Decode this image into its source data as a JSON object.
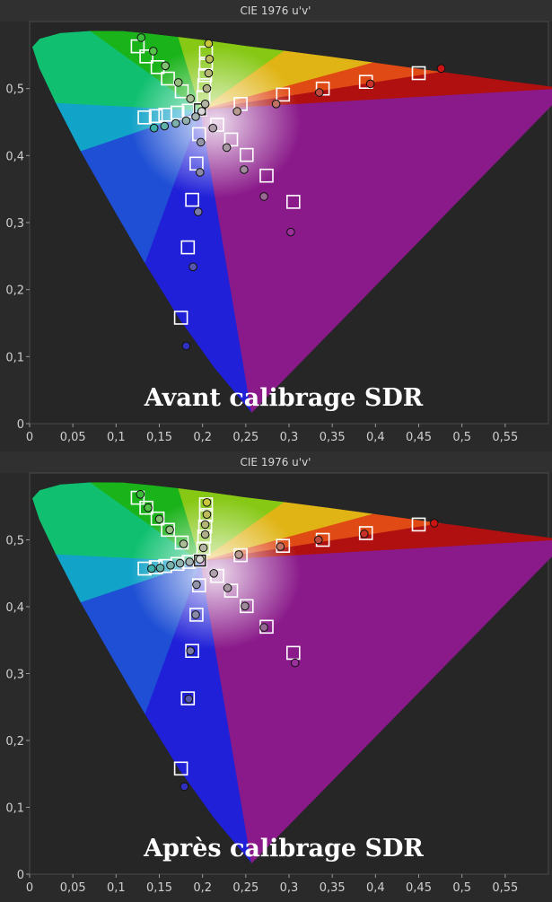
{
  "chart_data": [
    {
      "type": "scatter",
      "title": "CIE 1976 u'v'",
      "annotation": "Avant calibrage SDR",
      "xlim": [
        0,
        0.6
      ],
      "ylim": [
        0,
        0.6
      ],
      "x_ticks": [
        "0",
        "0,05",
        "0,1",
        "0,15",
        "0,2",
        "0,25",
        "0,3",
        "0,35",
        "0,4",
        "0,45",
        "0,5",
        "0,55"
      ],
      "y_ticks": [
        "0",
        "0,1",
        "0,2",
        "0,3",
        "0,4",
        "0,5"
      ],
      "grid": false,
      "targets": [
        {
          "u": 0.125,
          "v": 0.563
        },
        {
          "u": 0.135,
          "v": 0.548
        },
        {
          "u": 0.148,
          "v": 0.532
        },
        {
          "u": 0.16,
          "v": 0.515
        },
        {
          "u": 0.176,
          "v": 0.496
        },
        {
          "u": 0.204,
          "v": 0.553
        },
        {
          "u": 0.204,
          "v": 0.537
        },
        {
          "u": 0.203,
          "v": 0.52
        },
        {
          "u": 0.202,
          "v": 0.505
        },
        {
          "u": 0.201,
          "v": 0.487
        },
        {
          "u": 0.133,
          "v": 0.457
        },
        {
          "u": 0.146,
          "v": 0.459
        },
        {
          "u": 0.157,
          "v": 0.461
        },
        {
          "u": 0.171,
          "v": 0.464
        },
        {
          "u": 0.184,
          "v": 0.467
        },
        {
          "u": 0.197,
          "v": 0.469
        },
        {
          "u": 0.217,
          "v": 0.446
        },
        {
          "u": 0.233,
          "v": 0.424
        },
        {
          "u": 0.251,
          "v": 0.401
        },
        {
          "u": 0.274,
          "v": 0.37
        },
        {
          "u": 0.305,
          "v": 0.331
        },
        {
          "u": 0.196,
          "v": 0.432
        },
        {
          "u": 0.193,
          "v": 0.388
        },
        {
          "u": 0.188,
          "v": 0.334
        },
        {
          "u": 0.183,
          "v": 0.263
        },
        {
          "u": 0.175,
          "v": 0.158
        },
        {
          "u": 0.244,
          "v": 0.477
        },
        {
          "u": 0.293,
          "v": 0.491
        },
        {
          "u": 0.339,
          "v": 0.5
        },
        {
          "u": 0.389,
          "v": 0.51
        },
        {
          "u": 0.45,
          "v": 0.523
        }
      ],
      "measurements": [
        {
          "u": 0.129,
          "v": 0.576,
          "color": "#3bbd3b"
        },
        {
          "u": 0.143,
          "v": 0.556,
          "color": "#55c24a"
        },
        {
          "u": 0.157,
          "v": 0.534,
          "color": "#80c070"
        },
        {
          "u": 0.172,
          "v": 0.509,
          "color": "#95be80"
        },
        {
          "u": 0.186,
          "v": 0.485,
          "color": "#aabd98"
        },
        {
          "u": 0.207,
          "v": 0.567,
          "color": "#c8c63a"
        },
        {
          "u": 0.208,
          "v": 0.544,
          "color": "#bcbc5a"
        },
        {
          "u": 0.207,
          "v": 0.523,
          "color": "#b4b474"
        },
        {
          "u": 0.205,
          "v": 0.5,
          "color": "#aeae88"
        },
        {
          "u": 0.203,
          "v": 0.477,
          "color": "#b4b4a4"
        },
        {
          "u": 0.144,
          "v": 0.441,
          "color": "#3ab0a8"
        },
        {
          "u": 0.156,
          "v": 0.444,
          "color": "#60b0a8"
        },
        {
          "u": 0.169,
          "v": 0.448,
          "color": "#7cb0aa"
        },
        {
          "u": 0.181,
          "v": 0.452,
          "color": "#90b0ae"
        },
        {
          "u": 0.192,
          "v": 0.458,
          "color": "#a2b2b0"
        },
        {
          "u": 0.199,
          "v": 0.466,
          "color": "#d8d8d8"
        },
        {
          "u": 0.212,
          "v": 0.441,
          "color": "#b0a0ac"
        },
        {
          "u": 0.228,
          "v": 0.412,
          "color": "#a898a4"
        },
        {
          "u": 0.248,
          "v": 0.379,
          "color": "#a08a9c"
        },
        {
          "u": 0.271,
          "v": 0.339,
          "color": "#986894"
        },
        {
          "u": 0.302,
          "v": 0.286,
          "color": "#9b2f9b"
        },
        {
          "u": 0.198,
          "v": 0.42,
          "color": "#9494a8"
        },
        {
          "u": 0.197,
          "v": 0.375,
          "color": "#8a8aa8"
        },
        {
          "u": 0.195,
          "v": 0.316,
          "color": "#7878aa"
        },
        {
          "u": 0.189,
          "v": 0.234,
          "color": "#5656b0"
        },
        {
          "u": 0.181,
          "v": 0.116,
          "color": "#3030c0"
        },
        {
          "u": 0.24,
          "v": 0.466,
          "color": "#b89a8e"
        },
        {
          "u": 0.285,
          "v": 0.477,
          "color": "#c07064"
        },
        {
          "u": 0.335,
          "v": 0.494,
          "color": "#c04a40"
        },
        {
          "u": 0.394,
          "v": 0.507,
          "color": "#c83028"
        },
        {
          "u": 0.476,
          "v": 0.53,
          "color": "#cc1414"
        }
      ]
    },
    {
      "type": "scatter",
      "title": "CIE 1976 u'v'",
      "annotation": "Après calibrage SDR",
      "xlim": [
        0,
        0.6
      ],
      "ylim": [
        0,
        0.6
      ],
      "x_ticks": [
        "0",
        "0,05",
        "0,1",
        "0,15",
        "0,2",
        "0,25",
        "0,3",
        "0,35",
        "0,4",
        "0,45",
        "0,5",
        "0,55"
      ],
      "y_ticks": [
        "0",
        "0,1",
        "0,2",
        "0,3",
        "0,4",
        "0,5"
      ],
      "grid": false,
      "targets": [
        {
          "u": 0.125,
          "v": 0.563
        },
        {
          "u": 0.135,
          "v": 0.548
        },
        {
          "u": 0.148,
          "v": 0.532
        },
        {
          "u": 0.16,
          "v": 0.515
        },
        {
          "u": 0.176,
          "v": 0.496
        },
        {
          "u": 0.204,
          "v": 0.553
        },
        {
          "u": 0.204,
          "v": 0.537
        },
        {
          "u": 0.203,
          "v": 0.52
        },
        {
          "u": 0.202,
          "v": 0.505
        },
        {
          "u": 0.201,
          "v": 0.487
        },
        {
          "u": 0.133,
          "v": 0.457
        },
        {
          "u": 0.146,
          "v": 0.459
        },
        {
          "u": 0.157,
          "v": 0.461
        },
        {
          "u": 0.171,
          "v": 0.464
        },
        {
          "u": 0.184,
          "v": 0.467
        },
        {
          "u": 0.197,
          "v": 0.469
        },
        {
          "u": 0.217,
          "v": 0.446
        },
        {
          "u": 0.233,
          "v": 0.424
        },
        {
          "u": 0.251,
          "v": 0.401
        },
        {
          "u": 0.274,
          "v": 0.37
        },
        {
          "u": 0.305,
          "v": 0.331
        },
        {
          "u": 0.196,
          "v": 0.432
        },
        {
          "u": 0.193,
          "v": 0.388
        },
        {
          "u": 0.188,
          "v": 0.334
        },
        {
          "u": 0.183,
          "v": 0.263
        },
        {
          "u": 0.175,
          "v": 0.158
        },
        {
          "u": 0.244,
          "v": 0.477
        },
        {
          "u": 0.293,
          "v": 0.491
        },
        {
          "u": 0.339,
          "v": 0.5
        },
        {
          "u": 0.389,
          "v": 0.51
        },
        {
          "u": 0.45,
          "v": 0.523
        }
      ],
      "measurements": [
        {
          "u": 0.128,
          "v": 0.568,
          "color": "#3bbd3b"
        },
        {
          "u": 0.137,
          "v": 0.548,
          "color": "#55c24a"
        },
        {
          "u": 0.15,
          "v": 0.531,
          "color": "#80c070"
        },
        {
          "u": 0.162,
          "v": 0.515,
          "color": "#95be80"
        },
        {
          "u": 0.178,
          "v": 0.494,
          "color": "#aabd98"
        },
        {
          "u": 0.205,
          "v": 0.556,
          "color": "#c8c63a"
        },
        {
          "u": 0.205,
          "v": 0.538,
          "color": "#bcbc5a"
        },
        {
          "u": 0.203,
          "v": 0.523,
          "color": "#b4b474"
        },
        {
          "u": 0.203,
          "v": 0.508,
          "color": "#aeae88"
        },
        {
          "u": 0.201,
          "v": 0.488,
          "color": "#b4b4a4"
        },
        {
          "u": 0.141,
          "v": 0.457,
          "color": "#3ab0a8"
        },
        {
          "u": 0.151,
          "v": 0.458,
          "color": "#60b0a8"
        },
        {
          "u": 0.163,
          "v": 0.462,
          "color": "#7cb0aa"
        },
        {
          "u": 0.174,
          "v": 0.465,
          "color": "#90b0ae"
        },
        {
          "u": 0.185,
          "v": 0.467,
          "color": "#a2b2b0"
        },
        {
          "u": 0.197,
          "v": 0.471,
          "color": "#d8d8d8"
        },
        {
          "u": 0.213,
          "v": 0.45,
          "color": "#b0a0ac"
        },
        {
          "u": 0.229,
          "v": 0.428,
          "color": "#a898a4"
        },
        {
          "u": 0.249,
          "v": 0.401,
          "color": "#a08a9c"
        },
        {
          "u": 0.271,
          "v": 0.369,
          "color": "#986894"
        },
        {
          "u": 0.307,
          "v": 0.316,
          "color": "#9b2f9b"
        },
        {
          "u": 0.193,
          "v": 0.433,
          "color": "#9494a8"
        },
        {
          "u": 0.192,
          "v": 0.388,
          "color": "#8a8aa8"
        },
        {
          "u": 0.186,
          "v": 0.334,
          "color": "#7878aa"
        },
        {
          "u": 0.184,
          "v": 0.262,
          "color": "#5656b0"
        },
        {
          "u": 0.179,
          "v": 0.131,
          "color": "#3030c0"
        },
        {
          "u": 0.242,
          "v": 0.478,
          "color": "#b89a8e"
        },
        {
          "u": 0.29,
          "v": 0.49,
          "color": "#c07064"
        },
        {
          "u": 0.334,
          "v": 0.5,
          "color": "#c04a40"
        },
        {
          "u": 0.387,
          "v": 0.509,
          "color": "#c83028"
        },
        {
          "u": 0.468,
          "v": 0.525,
          "color": "#cc1414"
        }
      ]
    }
  ]
}
